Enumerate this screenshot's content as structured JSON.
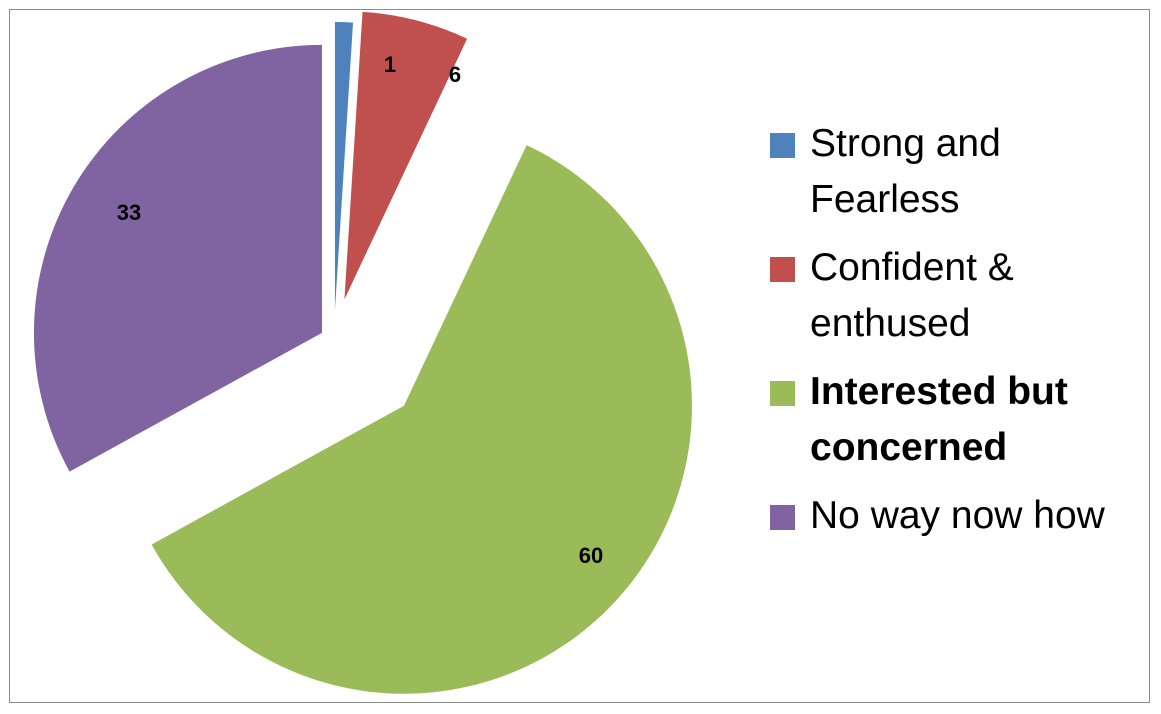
{
  "chart_data": {
    "type": "pie",
    "slices": [
      {
        "label": "Strong and Fearless",
        "value": 1,
        "display": "1",
        "color": "#4f81bd",
        "exploded": true,
        "legend_bold": false
      },
      {
        "label": "Confident & enthused",
        "value": 6,
        "display": "6",
        "color": "#c0504d",
        "exploded": true,
        "legend_bold": false
      },
      {
        "label": "Interested but concerned",
        "value": 60,
        "display": "60",
        "color": "#9bbb59",
        "exploded": true,
        "legend_bold": true
      },
      {
        "label": "No way now how",
        "value": 33,
        "display": "33",
        "color": "#8064a2",
        "exploded": true,
        "legend_bold": false
      }
    ],
    "legend_position": "right",
    "start_angle": "12 o'clock, clockwise"
  }
}
